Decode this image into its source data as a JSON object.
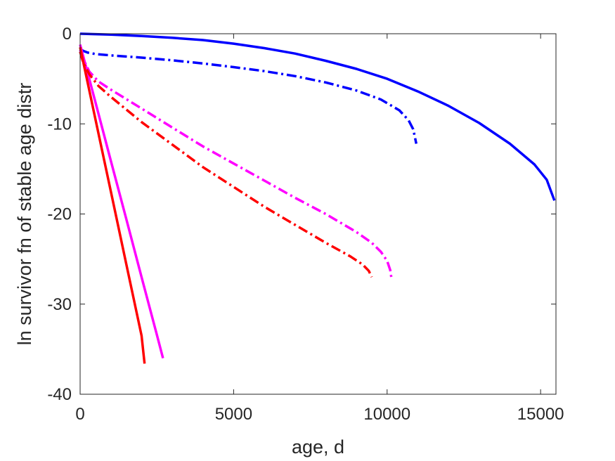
{
  "chart_data": {
    "type": "line",
    "xlabel": "age, d",
    "ylabel": "ln survivor fn of stable age distr",
    "xlim": [
      0,
      15500
    ],
    "ylim": [
      -40,
      0
    ],
    "xticks": [
      0,
      5000,
      10000,
      15000
    ],
    "yticks": [
      0,
      -10,
      -20,
      -30,
      -40
    ],
    "grid": false,
    "legend": "none",
    "series": [
      {
        "color": "#0000ff",
        "style": "solid",
        "x": [
          0,
          1000,
          2000,
          3000,
          4000,
          5000,
          6000,
          7000,
          8000,
          9000,
          10000,
          11000,
          12000,
          13000,
          14000,
          14800,
          15200,
          15450
        ],
        "y": [
          0,
          -0.1,
          -0.25,
          -0.45,
          -0.7,
          -1.1,
          -1.6,
          -2.2,
          -3.0,
          -3.9,
          -5.0,
          -6.4,
          -8.0,
          -9.9,
          -12.2,
          -14.5,
          -16.2,
          -18.5
        ]
      },
      {
        "color": "#0000ff",
        "style": "dashdot",
        "x": [
          0,
          100,
          250,
          500,
          1000,
          2000,
          3000,
          4000,
          5000,
          6000,
          7000,
          8000,
          9000,
          9800,
          10400,
          10700,
          10850,
          10950
        ],
        "y": [
          -1.7,
          -1.9,
          -2.1,
          -2.25,
          -2.4,
          -2.65,
          -2.95,
          -3.3,
          -3.7,
          -4.15,
          -4.7,
          -5.4,
          -6.3,
          -7.3,
          -8.5,
          -9.6,
          -10.6,
          -12.2
        ]
      },
      {
        "color": "#ff00ff",
        "style": "solid",
        "x": [
          0,
          500,
          1000,
          1500,
          2000,
          2500,
          2700
        ],
        "y": [
          -1.2,
          -7.6,
          -14.1,
          -20.5,
          -27.0,
          -33.4,
          -36.0
        ]
      },
      {
        "color": "#ff00ff",
        "style": "dashdot",
        "x": [
          0,
          100,
          300,
          600,
          1000,
          2000,
          3000,
          4000,
          5000,
          6000,
          7000,
          8000,
          9000,
          9500,
          9800,
          10000,
          10100,
          10150
        ],
        "y": [
          -1.8,
          -2.8,
          -4.2,
          -5.3,
          -6.2,
          -8.3,
          -10.4,
          -12.5,
          -14.4,
          -16.3,
          -18.2,
          -20.0,
          -22.0,
          -23.2,
          -24.2,
          -25.2,
          -26.2,
          -27.3
        ]
      },
      {
        "color": "#ff0000",
        "style": "solid",
        "x": [
          0,
          500,
          1000,
          1500,
          2000,
          2100
        ],
        "y": [
          -1.5,
          -9.5,
          -17.5,
          -25.5,
          -33.5,
          -36.6
        ]
      },
      {
        "color": "#ff0000",
        "style": "dashdot",
        "x": [
          0,
          100,
          300,
          600,
          1000,
          2000,
          3000,
          4000,
          5000,
          6000,
          7000,
          8000,
          8800,
          9200,
          9400,
          9500
        ],
        "y": [
          -2.0,
          -3.2,
          -4.5,
          -5.8,
          -7.0,
          -9.8,
          -12.3,
          -14.8,
          -17.0,
          -19.2,
          -21.2,
          -23.2,
          -24.7,
          -25.6,
          -26.3,
          -27.0
        ]
      }
    ]
  }
}
